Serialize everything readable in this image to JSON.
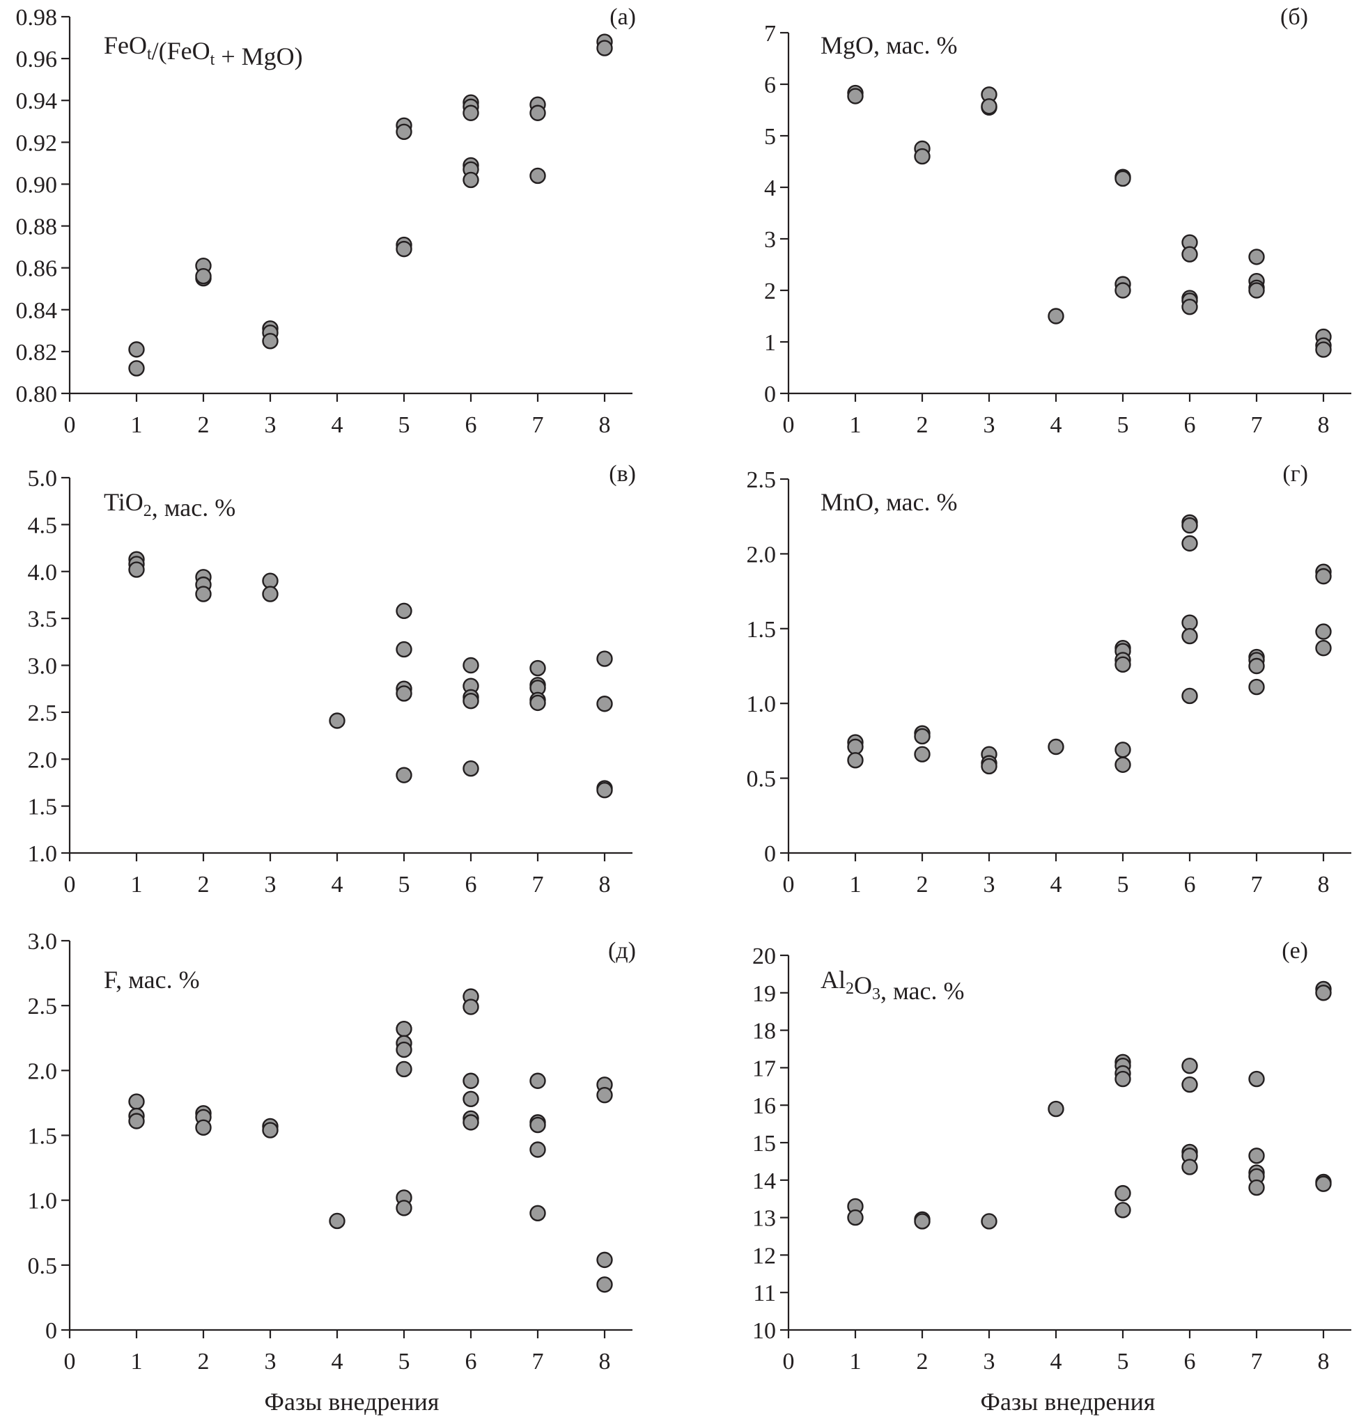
{
  "colors": {
    "marker_fill": "#9b9b9b",
    "marker_stroke": "#231f20",
    "axis": "#231f20"
  },
  "chart_data": [
    {
      "type": "scatter",
      "letter": "(а)",
      "title": [
        {
          "t": "FeO"
        },
        {
          "sub": "t"
        },
        {
          "t": "/(FeO"
        },
        {
          "sub": "t"
        },
        {
          "t": " + MgO)"
        }
      ],
      "xlabel": "",
      "xlim": [
        0,
        8
      ],
      "ylim": [
        0.8,
        0.98
      ],
      "xticks": [
        "0",
        "1",
        "2",
        "3",
        "4",
        "5",
        "6",
        "7",
        "8"
      ],
      "yticks": [
        "0.80",
        "0.82",
        "0.84",
        "0.86",
        "0.88",
        "0.90",
        "0.92",
        "0.94",
        "0.96",
        "0.98"
      ],
      "points": [
        [
          1,
          0.821
        ],
        [
          1,
          0.812
        ],
        [
          2,
          0.861
        ],
        [
          2,
          0.855
        ],
        [
          2,
          0.856
        ],
        [
          3,
          0.831
        ],
        [
          3,
          0.829
        ],
        [
          3,
          0.825
        ],
        [
          5,
          0.928
        ],
        [
          5,
          0.925
        ],
        [
          5,
          0.871
        ],
        [
          5,
          0.869
        ],
        [
          6,
          0.939
        ],
        [
          6,
          0.937
        ],
        [
          6,
          0.934
        ],
        [
          6,
          0.909
        ],
        [
          6,
          0.907
        ],
        [
          6,
          0.902
        ],
        [
          7,
          0.938
        ],
        [
          7,
          0.934
        ],
        [
          7,
          0.904
        ],
        [
          8,
          0.968
        ],
        [
          8,
          0.965
        ]
      ]
    },
    {
      "type": "scatter",
      "letter": "(б)",
      "title": [
        {
          "t": "MgO, мас. %"
        }
      ],
      "xlabel": "",
      "xlim": [
        0,
        8
      ],
      "ylim": [
        0,
        7
      ],
      "xticks": [
        "0",
        "1",
        "2",
        "3",
        "4",
        "5",
        "6",
        "7",
        "8"
      ],
      "yticks": [
        "0",
        "1",
        "2",
        "3",
        "4",
        "5",
        "6",
        "7"
      ],
      "points": [
        [
          1,
          5.83
        ],
        [
          1,
          5.77
        ],
        [
          2,
          4.75
        ],
        [
          2,
          4.6
        ],
        [
          3,
          5.8
        ],
        [
          3,
          5.55
        ],
        [
          3,
          5.57
        ],
        [
          4,
          1.5
        ],
        [
          5,
          4.2
        ],
        [
          5,
          4.17
        ],
        [
          5,
          2.12
        ],
        [
          5,
          2.0
        ],
        [
          6,
          2.93
        ],
        [
          6,
          2.7
        ],
        [
          6,
          1.85
        ],
        [
          6,
          1.8
        ],
        [
          6,
          1.68
        ],
        [
          7,
          2.65
        ],
        [
          7,
          2.18
        ],
        [
          7,
          2.05
        ],
        [
          7,
          2.0
        ],
        [
          8,
          1.1
        ],
        [
          8,
          0.93
        ],
        [
          8,
          0.85
        ]
      ]
    },
    {
      "type": "scatter",
      "letter": "(в)",
      "title": [
        {
          "t": "TiO"
        },
        {
          "sub": "2"
        },
        {
          "t": ", мас. %"
        }
      ],
      "xlabel": "",
      "xlim": [
        0,
        8
      ],
      "ylim": [
        1.0,
        5.0
      ],
      "xticks": [
        "0",
        "1",
        "2",
        "3",
        "4",
        "5",
        "6",
        "7",
        "8"
      ],
      "yticks": [
        "1.0",
        "1.5",
        "2.0",
        "2.5",
        "3.0",
        "3.5",
        "4.0",
        "4.5",
        "5.0"
      ],
      "points": [
        [
          1,
          4.13
        ],
        [
          1,
          4.08
        ],
        [
          1,
          4.02
        ],
        [
          2,
          3.94
        ],
        [
          2,
          3.86
        ],
        [
          2,
          3.76
        ],
        [
          3,
          3.9
        ],
        [
          3,
          3.76
        ],
        [
          4,
          2.41
        ],
        [
          5,
          3.58
        ],
        [
          5,
          3.17
        ],
        [
          5,
          2.75
        ],
        [
          5,
          2.7
        ],
        [
          5,
          1.83
        ],
        [
          6,
          3.0
        ],
        [
          6,
          2.78
        ],
        [
          6,
          2.66
        ],
        [
          6,
          2.62
        ],
        [
          6,
          1.9
        ],
        [
          7,
          2.97
        ],
        [
          7,
          2.79
        ],
        [
          7,
          2.76
        ],
        [
          7,
          2.63
        ],
        [
          7,
          2.6
        ],
        [
          8,
          3.07
        ],
        [
          8,
          2.59
        ],
        [
          8,
          1.69
        ],
        [
          8,
          1.67
        ]
      ]
    },
    {
      "type": "scatter",
      "letter": "(г)",
      "title": [
        {
          "t": "MnO, мас. %"
        }
      ],
      "xlabel": "",
      "xlim": [
        0,
        8
      ],
      "ylim": [
        0,
        2.5
      ],
      "xticks": [
        "0",
        "1",
        "2",
        "3",
        "4",
        "5",
        "6",
        "7",
        "8"
      ],
      "yticks": [
        "0",
        "0.5",
        "1.0",
        "1.5",
        "2.0",
        "2.5"
      ],
      "points": [
        [
          1,
          0.74
        ],
        [
          1,
          0.71
        ],
        [
          1,
          0.62
        ],
        [
          2,
          0.8
        ],
        [
          2,
          0.78
        ],
        [
          2,
          0.66
        ],
        [
          3,
          0.66
        ],
        [
          3,
          0.6
        ],
        [
          3,
          0.58
        ],
        [
          4,
          0.71
        ],
        [
          5,
          1.37
        ],
        [
          5,
          1.35
        ],
        [
          5,
          1.29
        ],
        [
          5,
          1.26
        ],
        [
          5,
          0.69
        ],
        [
          5,
          0.59
        ],
        [
          6,
          2.21
        ],
        [
          6,
          2.19
        ],
        [
          6,
          2.07
        ],
        [
          6,
          1.54
        ],
        [
          6,
          1.45
        ],
        [
          6,
          1.05
        ],
        [
          7,
          1.31
        ],
        [
          7,
          1.29
        ],
        [
          7,
          1.25
        ],
        [
          7,
          1.11
        ],
        [
          8,
          1.88
        ],
        [
          8,
          1.85
        ],
        [
          8,
          1.48
        ],
        [
          8,
          1.37
        ]
      ]
    },
    {
      "type": "scatter",
      "letter": "(д)",
      "title": [
        {
          "t": "F, мас. %"
        }
      ],
      "xlabel": "Фазы внедрения",
      "xlim": [
        0,
        8
      ],
      "ylim": [
        0,
        3.0
      ],
      "xticks": [
        "0",
        "1",
        "2",
        "3",
        "4",
        "5",
        "6",
        "7",
        "8"
      ],
      "yticks": [
        "0",
        "0.5",
        "1.0",
        "1.5",
        "2.0",
        "2.5",
        "3.0"
      ],
      "points": [
        [
          1,
          1.76
        ],
        [
          1,
          1.65
        ],
        [
          1,
          1.61
        ],
        [
          2,
          1.67
        ],
        [
          2,
          1.64
        ],
        [
          2,
          1.56
        ],
        [
          3,
          1.57
        ],
        [
          3,
          1.54
        ],
        [
          4,
          0.84
        ],
        [
          5,
          2.32
        ],
        [
          5,
          2.21
        ],
        [
          5,
          2.16
        ],
        [
          5,
          2.01
        ],
        [
          5,
          1.02
        ],
        [
          5,
          0.94
        ],
        [
          6,
          2.57
        ],
        [
          6,
          2.49
        ],
        [
          6,
          1.92
        ],
        [
          6,
          1.78
        ],
        [
          6,
          1.63
        ],
        [
          6,
          1.6
        ],
        [
          7,
          1.92
        ],
        [
          7,
          1.6
        ],
        [
          7,
          1.58
        ],
        [
          7,
          1.39
        ],
        [
          7,
          0.9
        ],
        [
          8,
          1.89
        ],
        [
          8,
          1.81
        ],
        [
          8,
          0.54
        ],
        [
          8,
          0.35
        ]
      ]
    },
    {
      "type": "scatter",
      "letter": "(е)",
      "title": [
        {
          "t": "Al"
        },
        {
          "sub": "2"
        },
        {
          "t": "O"
        },
        {
          "sub": "3"
        },
        {
          "t": ", мас. %"
        }
      ],
      "xlabel": "Фазы внедрения",
      "xlim": [
        0,
        8
      ],
      "ylim": [
        10,
        20
      ],
      "xticks": [
        "0",
        "1",
        "2",
        "3",
        "4",
        "5",
        "6",
        "7",
        "8"
      ],
      "yticks": [
        "10",
        "11",
        "12",
        "13",
        "14",
        "15",
        "16",
        "17",
        "18",
        "19",
        "20"
      ],
      "points": [
        [
          1,
          13.3
        ],
        [
          1,
          13.0
        ],
        [
          2,
          12.95
        ],
        [
          2,
          12.9
        ],
        [
          3,
          12.9
        ],
        [
          4,
          15.9
        ],
        [
          5,
          17.15
        ],
        [
          5,
          17.05
        ],
        [
          5,
          16.85
        ],
        [
          5,
          16.7
        ],
        [
          5,
          13.65
        ],
        [
          5,
          13.2
        ],
        [
          6,
          17.05
        ],
        [
          6,
          16.55
        ],
        [
          6,
          14.75
        ],
        [
          6,
          14.65
        ],
        [
          6,
          14.35
        ],
        [
          7,
          16.7
        ],
        [
          7,
          14.65
        ],
        [
          7,
          14.2
        ],
        [
          7,
          14.1
        ],
        [
          7,
          13.8
        ],
        [
          8,
          19.1
        ],
        [
          8,
          19.0
        ],
        [
          8,
          13.95
        ],
        [
          8,
          13.9
        ]
      ]
    }
  ]
}
